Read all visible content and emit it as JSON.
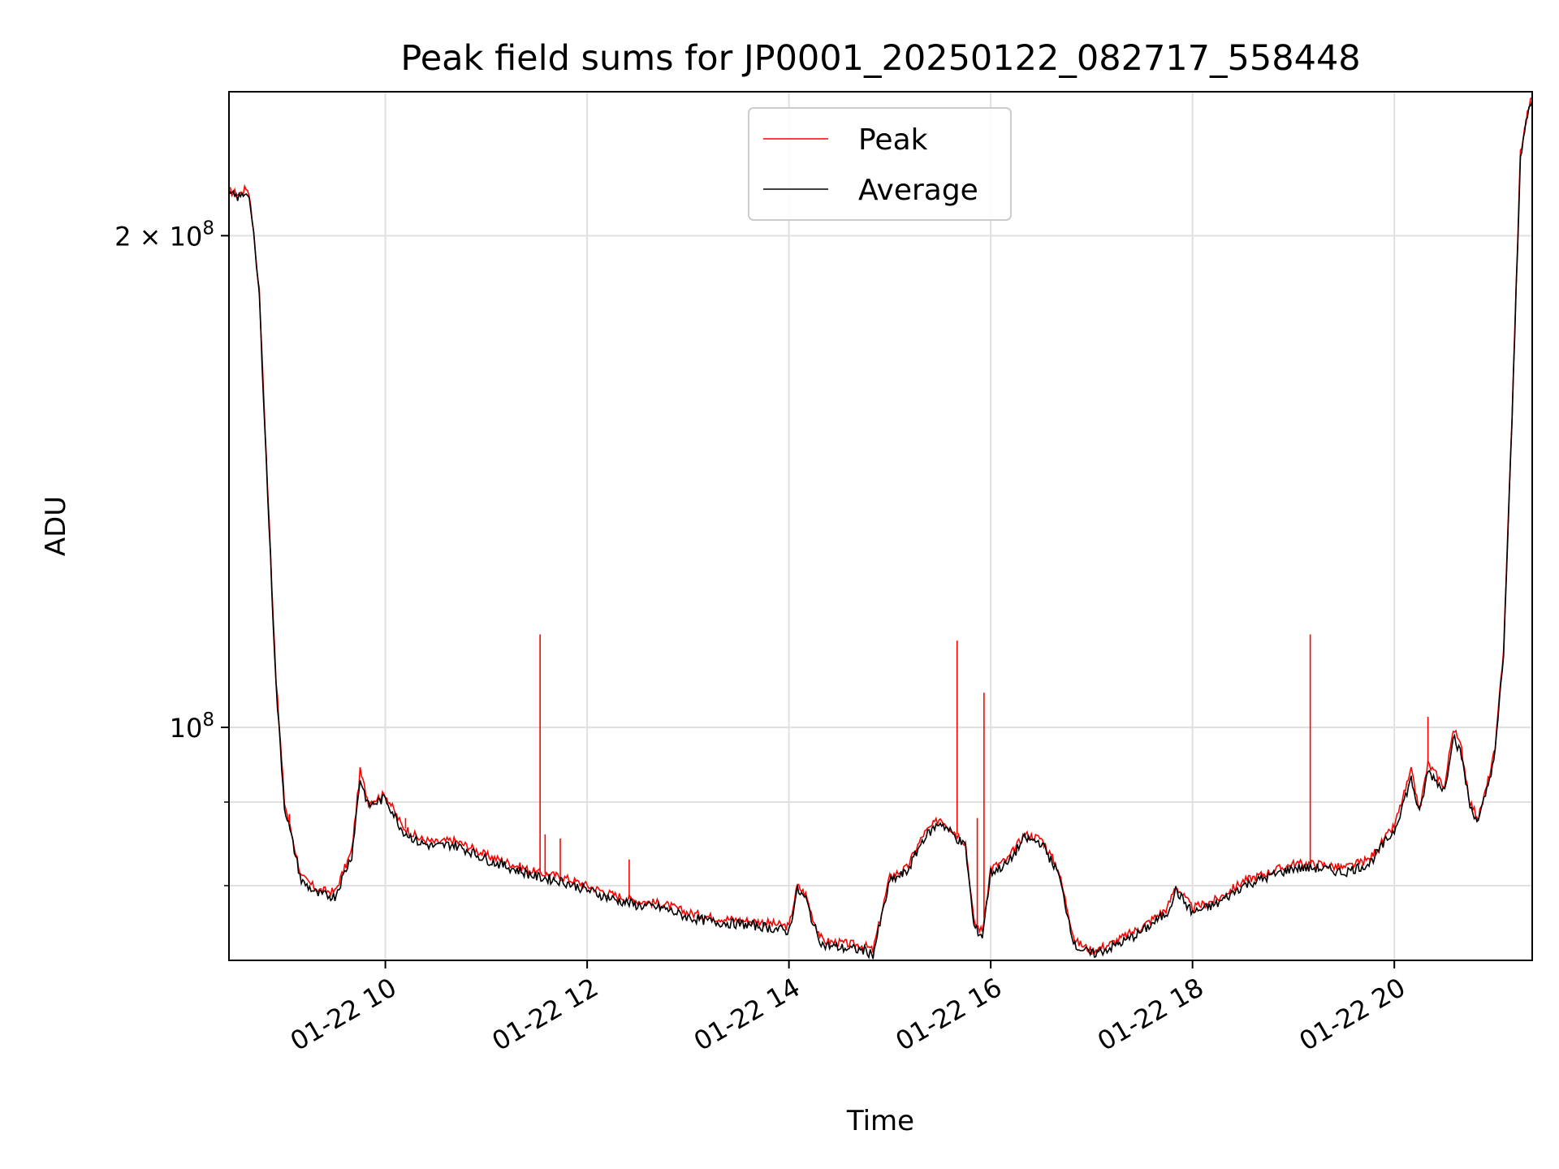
{
  "chart_data": {
    "type": "line",
    "title": "Peak field sums for JP0001_20250122_082717_558448",
    "xlabel": "Time",
    "ylabel": "ADU",
    "y_scale": "log",
    "ylim": [
      72000000,
      245000000
    ],
    "x_axis": "time (date 2025-01-22)",
    "xlim": [
      "2025-01-22 08:27",
      "2025-01-22 21:22"
    ],
    "x_ticks": [
      {
        "value": "2025-01-22 10:00",
        "label": "01-22 10"
      },
      {
        "value": "2025-01-22 12:00",
        "label": "01-22 12"
      },
      {
        "value": "2025-01-22 14:00",
        "label": "01-22 14"
      },
      {
        "value": "2025-01-22 16:00",
        "label": "01-22 16"
      },
      {
        "value": "2025-01-22 18:00",
        "label": "01-22 18"
      },
      {
        "value": "2025-01-22 20:00",
        "label": "01-22 20"
      }
    ],
    "y_ticks_major": [
      {
        "value": 100000000,
        "label_base": "10",
        "label_exp": "8",
        "label_prefix": ""
      },
      {
        "value": 200000000,
        "label_base": "10",
        "label_exp": "8",
        "label_prefix": "2 × "
      }
    ],
    "y_ticks_minor": [
      80000000,
      90000000
    ],
    "grid": true,
    "legend_position": "top-center",
    "series": [
      {
        "name": "Peak",
        "color": "#ff0000",
        "x": [
          "08:27",
          "08:33",
          "08:38",
          "08:40",
          "08:45",
          "08:50",
          "08:55",
          "09:00",
          "09:10",
          "09:20",
          "09:30",
          "09:40",
          "09:45",
          "09:50",
          "10:00",
          "10:10",
          "10:20",
          "10:30",
          "10:40",
          "10:50",
          "11:00",
          "11:15",
          "11:30",
          "11:45",
          "12:00",
          "12:15",
          "12:30",
          "12:45",
          "13:00",
          "13:15",
          "13:30",
          "13:45",
          "14:00",
          "14:05",
          "14:10",
          "14:15",
          "14:20",
          "14:30",
          "14:45",
          "14:50",
          "15:00",
          "15:10",
          "15:20",
          "15:30",
          "15:40",
          "15:45",
          "15:50",
          "15:55",
          "16:00",
          "16:10",
          "16:20",
          "16:30",
          "16:40",
          "16:50",
          "17:00",
          "17:10",
          "17:20",
          "17:30",
          "17:45",
          "17:50",
          "18:00",
          "18:15",
          "18:30",
          "18:45",
          "19:00",
          "19:15",
          "19:30",
          "19:45",
          "20:00",
          "20:10",
          "20:15",
          "20:20",
          "20:30",
          "20:35",
          "20:40",
          "20:45",
          "20:50",
          "20:55",
          "21:00",
          "21:05",
          "21:10",
          "21:15",
          "21:20",
          "21:22"
        ],
        "values": [
          213000000,
          212000000,
          214000000,
          209000000,
          185000000,
          140000000,
          107000000,
          90000000,
          81000000,
          79500000,
          79300000,
          84000000,
          94000000,
          90000000,
          91000000,
          87000000,
          85500000,
          85000000,
          85300000,
          84500000,
          83500000,
          82500000,
          81500000,
          81000000,
          80000000,
          79000000,
          78300000,
          78000000,
          77000000,
          76500000,
          76200000,
          76000000,
          75500000,
          80000000,
          79000000,
          76000000,
          74000000,
          73800000,
          73500000,
          73000000,
          81000000,
          82000000,
          86000000,
          88000000,
          86000000,
          85000000,
          76000000,
          75000000,
          82000000,
          83000000,
          86000000,
          85500000,
          82000000,
          74000000,
          73000000,
          73600000,
          74500000,
          75500000,
          77500000,
          80000000,
          77500000,
          78500000,
          80500000,
          81500000,
          82500000,
          82500000,
          82000000,
          83000000,
          87000000,
          94000000,
          89000000,
          95000000,
          92000000,
          100000000,
          97000000,
          90000000,
          88000000,
          92000000,
          97000000,
          112000000,
          155000000,
          225000000,
          240000000,
          243000000
        ]
      },
      {
        "name": "Average",
        "color": "#000000",
        "x": [
          "08:27",
          "08:33",
          "08:38",
          "08:40",
          "08:45",
          "08:50",
          "08:55",
          "09:00",
          "09:10",
          "09:20",
          "09:30",
          "09:40",
          "09:45",
          "09:50",
          "10:00",
          "10:10",
          "10:20",
          "10:30",
          "10:40",
          "10:50",
          "11:00",
          "11:15",
          "11:30",
          "11:45",
          "12:00",
          "12:15",
          "12:30",
          "12:45",
          "13:00",
          "13:15",
          "13:30",
          "13:45",
          "14:00",
          "14:05",
          "14:10",
          "14:15",
          "14:20",
          "14:30",
          "14:45",
          "14:50",
          "15:00",
          "15:10",
          "15:20",
          "15:30",
          "15:40",
          "15:45",
          "15:50",
          "15:55",
          "16:00",
          "16:10",
          "16:20",
          "16:30",
          "16:40",
          "16:50",
          "17:00",
          "17:10",
          "17:20",
          "17:30",
          "17:45",
          "17:50",
          "18:00",
          "18:15",
          "18:30",
          "18:45",
          "19:00",
          "19:15",
          "19:30",
          "19:45",
          "20:00",
          "20:10",
          "20:15",
          "20:20",
          "20:30",
          "20:35",
          "20:40",
          "20:45",
          "20:50",
          "20:55",
          "21:00",
          "21:05",
          "21:10",
          "21:15",
          "21:20",
          "21:22"
        ],
        "values": [
          212000000,
          211000000,
          213000000,
          208000000,
          184000000,
          139000000,
          106000000,
          89500000,
          80500000,
          79000000,
          78800000,
          83500000,
          93000000,
          89500000,
          90500000,
          86500000,
          85000000,
          84500000,
          84800000,
          84000000,
          83000000,
          82000000,
          81000000,
          80500000,
          79500000,
          78500000,
          77800000,
          77500000,
          76500000,
          76000000,
          75800000,
          75500000,
          75000000,
          79500000,
          78500000,
          75500000,
          73600000,
          73300000,
          73000000,
          72600000,
          80500000,
          81500000,
          85500000,
          87500000,
          85500000,
          84500000,
          75500000,
          74500000,
          81500000,
          82500000,
          85500000,
          85000000,
          81500000,
          73500000,
          72600000,
          73200000,
          74000000,
          75000000,
          77000000,
          79500000,
          77000000,
          78000000,
          80000000,
          81000000,
          82000000,
          82000000,
          81500000,
          82500000,
          86500000,
          93000000,
          88500000,
          94000000,
          91500000,
          99000000,
          96000000,
          89500000,
          87500000,
          91500000,
          96500000,
          111000000,
          154000000,
          224000000,
          239000000,
          242000000
        ]
      }
    ],
    "spikes": [
      {
        "series": "Peak",
        "x": "11:32",
        "value": 114000000
      },
      {
        "series": "Peak",
        "x": "11:35",
        "value": 86000000
      },
      {
        "series": "Peak",
        "x": "11:44",
        "value": 85500000
      },
      {
        "series": "Peak",
        "x": "12:25",
        "value": 83000000
      },
      {
        "series": "Peak",
        "x": "15:40",
        "value": 113000000
      },
      {
        "series": "Peak",
        "x": "15:52",
        "value": 88000000
      },
      {
        "series": "Peak",
        "x": "15:56",
        "value": 105000000
      },
      {
        "series": "Peak",
        "x": "19:10",
        "value": 114000000
      },
      {
        "series": "Peak",
        "x": "20:20",
        "value": 101500000
      },
      {
        "series": "Peak",
        "x": "09:03",
        "value": 88500000
      },
      {
        "series": "Peak",
        "x": "10:12",
        "value": 88000000
      }
    ]
  }
}
